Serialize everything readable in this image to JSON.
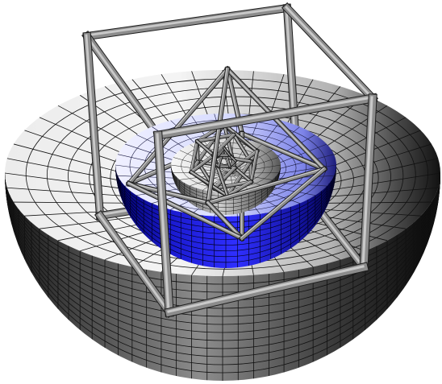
{
  "figure": {
    "description_visible_text": "",
    "colors": {
      "background": "#ffffff",
      "outer_bowl_light": "#f2f2f2",
      "outer_bowl_dark": "#0a0a0a",
      "mesh_line": "#111111",
      "middle_bowl_light": "#e6e8ff",
      "middle_bowl_mid": "#2b2bdc",
      "middle_bowl_dark": "#00007a",
      "inner_bowl_light": "#f0f0f0",
      "inner_bowl_dark": "#303030",
      "frame_light": "#c8c8c8",
      "frame_mid": "#8a8a8a",
      "frame_dark": "#3a3a3a"
    },
    "nested_levels": [
      {
        "shape": "hemispherical-bowl",
        "color_name": "gray"
      },
      {
        "shape": "cube-wireframe",
        "color_name": "gray"
      },
      {
        "shape": "hemispherical-bowl",
        "color_name": "blue"
      },
      {
        "shape": "octahedron-wireframe",
        "color_name": "gray"
      },
      {
        "shape": "hemispherical-bowl",
        "color_name": "gray"
      },
      {
        "shape": "icosahedron-wireframe",
        "color_name": "gray"
      }
    ]
  }
}
